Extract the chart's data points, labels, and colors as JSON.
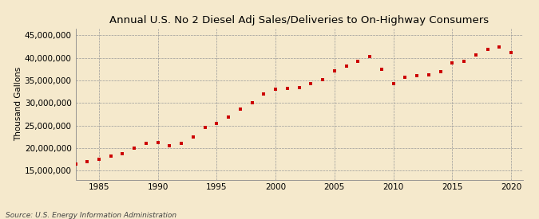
{
  "title": "Annual U.S. No 2 Diesel Adj Sales/Deliveries to On-Highway Consumers",
  "ylabel": "Thousand Gallons",
  "source": "Source: U.S. Energy Information Administration",
  "background_color": "#f5e9cc",
  "plot_bg_color": "#f5e9cc",
  "marker_color": "#cc0000",
  "years": [
    1983,
    1984,
    1985,
    1986,
    1987,
    1988,
    1989,
    1990,
    1991,
    1992,
    1993,
    1994,
    1995,
    1996,
    1997,
    1998,
    1999,
    2000,
    2001,
    2002,
    2003,
    2004,
    2005,
    2006,
    2007,
    2008,
    2009,
    2010,
    2011,
    2012,
    2013,
    2014,
    2015,
    2016,
    2017,
    2018,
    2019,
    2020
  ],
  "values": [
    16500000,
    17000000,
    17500000,
    18200000,
    18700000,
    20000000,
    21000000,
    21200000,
    20500000,
    21000000,
    22500000,
    24500000,
    25500000,
    26800000,
    28700000,
    30000000,
    32000000,
    33000000,
    33200000,
    33400000,
    34300000,
    35200000,
    37100000,
    38100000,
    39200000,
    40200000,
    37500000,
    34200000,
    35700000,
    36000000,
    36300000,
    37000000,
    38800000,
    39200000,
    40700000,
    41800000,
    42400000,
    41100000
  ],
  "ylim": [
    13000000,
    46500000
  ],
  "yticks": [
    15000000,
    20000000,
    25000000,
    30000000,
    35000000,
    40000000,
    45000000
  ],
  "xticks": [
    1985,
    1990,
    1995,
    2000,
    2005,
    2010,
    2015,
    2020
  ],
  "xlim": [
    1983,
    2021
  ],
  "title_fontsize": 9.5,
  "tick_fontsize": 7.5,
  "ylabel_fontsize": 7.5,
  "source_fontsize": 6.5,
  "marker_size": 10
}
